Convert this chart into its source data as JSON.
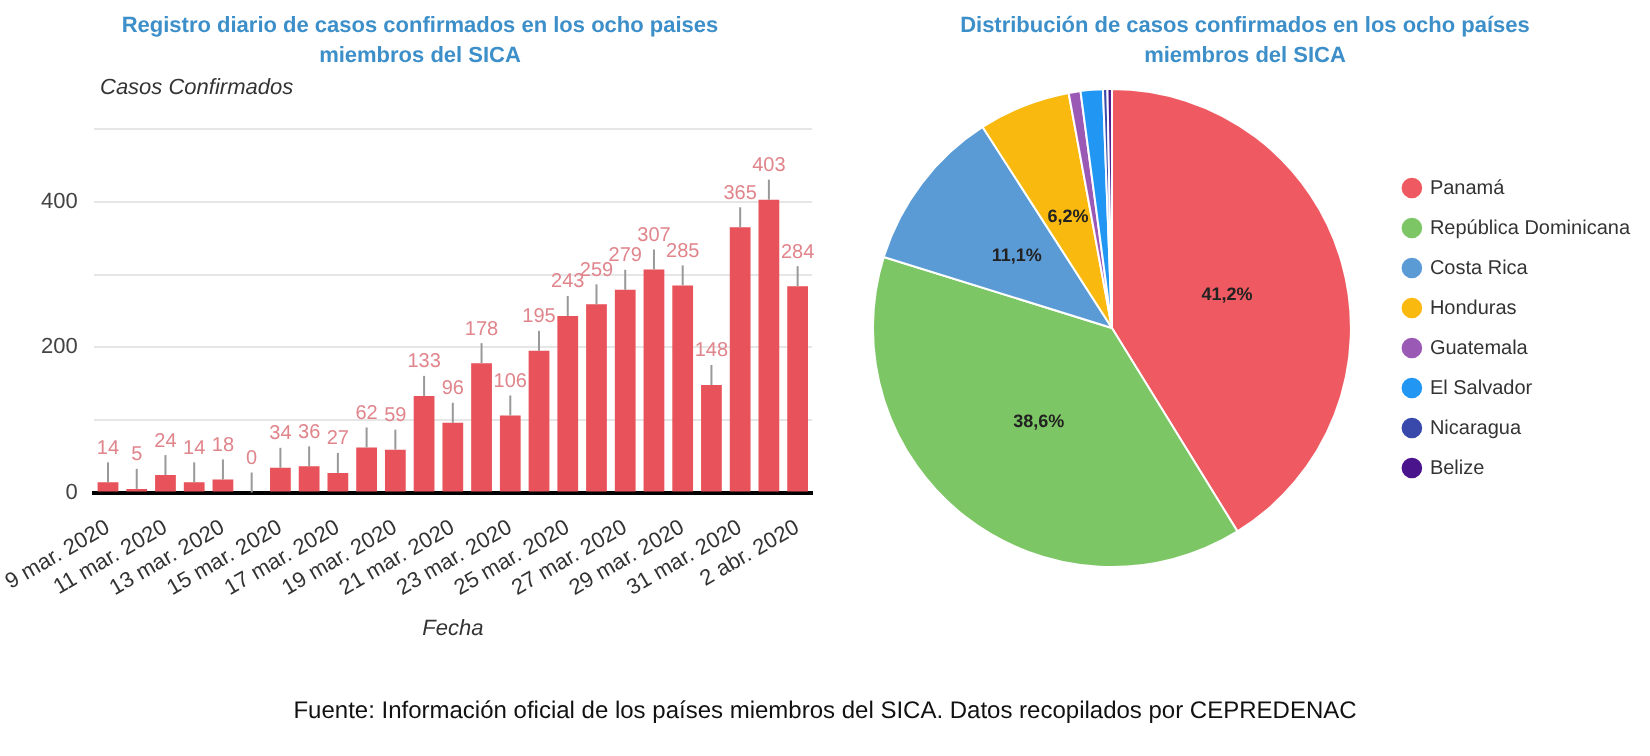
{
  "chart_data": [
    {
      "type": "bar",
      "title": "Registro diario de casos confirmados en los ocho paises miembros del SICA",
      "ylabel": "Casos Confirmados",
      "xlabel": "Fecha",
      "categories": [
        "9 mar. 2020",
        null,
        "11 mar. 2020",
        null,
        "13 mar. 2020",
        null,
        "15 mar. 2020",
        null,
        "17 mar. 2020",
        null,
        "19 mar. 2020",
        null,
        "21 mar. 2020",
        null,
        "23 mar. 2020",
        null,
        "25 mar. 2020",
        null,
        "27 mar. 2020",
        null,
        "29 mar. 2020",
        null,
        "31 mar. 2020",
        null,
        "2 abr. 2020"
      ],
      "values": [
        14,
        5,
        24,
        14,
        18,
        0,
        34,
        36,
        27,
        62,
        59,
        133,
        96,
        178,
        106,
        195,
        243,
        259,
        279,
        307,
        285,
        148,
        365,
        403,
        284
      ],
      "color": "#e8525a",
      "data_labels": true,
      "ylim": [
        0,
        500
      ],
      "yticks": [
        0,
        {
          "value": 100,
          "label": null
        },
        200,
        {
          "value": 300,
          "label": null
        },
        400,
        {
          "value": 500,
          "label": null
        }
      ],
      "grid": "y",
      "legend": false,
      "annotations": [
        "Fuente: Información oficial de los países miembros del SICA. Datos recopilados por CEPREDENAC"
      ]
    },
    {
      "type": "pie",
      "title": "Distribución de casos confirmados en los ocho países miembros del SICA",
      "categories": [
        "Panamá",
        "República Dominicana",
        "Costa Rica",
        "Honduras",
        "Guatemala",
        "El Salvador",
        "Nicaragua",
        "Belize"
      ],
      "values": [
        41.2,
        38.6,
        11.1,
        6.2,
        0.8,
        1.5,
        0.3,
        0.3
      ],
      "colors": [
        "#ef5a62",
        "#7dc665",
        "#5b9bd5",
        "#f9b90f",
        "#9b59b6",
        "#2196f3",
        "#3949ab",
        "#4a148c"
      ],
      "value_labels": [
        "41,2%",
        "38,6%",
        "11,1%",
        "6,2%",
        null,
        null,
        null,
        null
      ],
      "legend": "right"
    }
  ]
}
